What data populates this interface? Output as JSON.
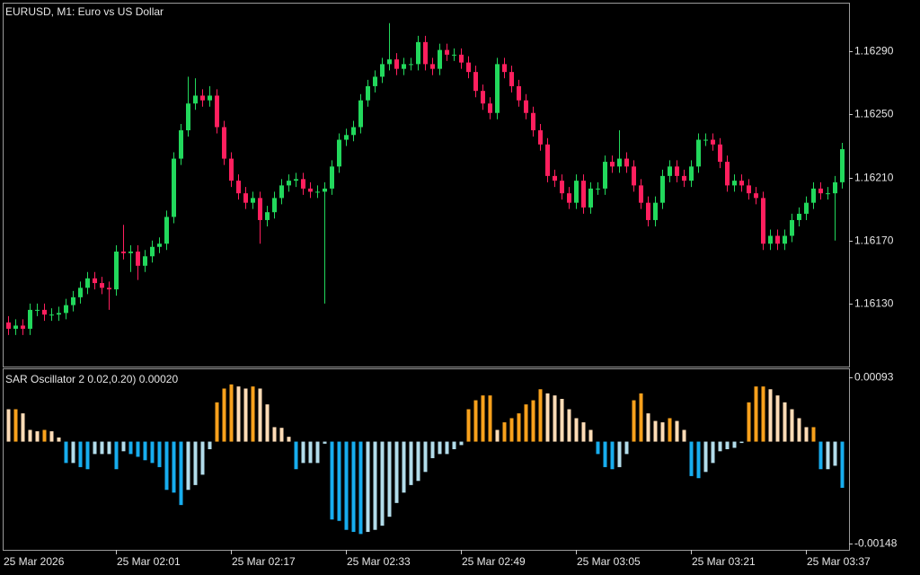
{
  "chart_data": [
    {
      "type": "candlestick",
      "title": "EURUSD, M1:  Euro vs US Dollar",
      "categories": [
        "25 Mar 2026",
        null,
        null,
        null,
        null,
        null,
        null,
        null,
        null,
        null,
        null,
        null,
        null,
        null,
        null,
        "25 Mar 02:01",
        null,
        null,
        null,
        null,
        null,
        null,
        null,
        null,
        null,
        null,
        null,
        null,
        null,
        null,
        null,
        "25 Mar 02:17",
        null,
        null,
        null,
        null,
        null,
        null,
        null,
        null,
        null,
        null,
        null,
        null,
        null,
        null,
        null,
        "25 Mar 02:33",
        null,
        null,
        null,
        null,
        null,
        null,
        null,
        null,
        null,
        null,
        null,
        null,
        null,
        null,
        null,
        "25 Mar 02:49",
        null,
        null,
        null,
        null,
        null,
        null,
        null,
        null,
        null,
        null,
        null,
        null,
        null,
        null,
        null,
        "25 Mar 03:05",
        null,
        null,
        null,
        null,
        null,
        null,
        null,
        null,
        null,
        null,
        null,
        null,
        null,
        null,
        null,
        "25 Mar 03:21",
        null,
        null,
        null,
        null,
        null,
        null,
        null,
        null,
        null,
        null,
        null,
        null,
        null,
        null,
        null,
        "25 Mar 03:37",
        null,
        null,
        null,
        null,
        null
      ],
      "open": [
        1.16118,
        1.16114,
        1.16116,
        1.16114,
        1.16126,
        1.16126,
        1.16123,
        1.16123,
        1.16124,
        1.16129,
        1.16134,
        1.1614,
        1.16146,
        1.16143,
        1.1614,
        1.16139,
        1.16163,
        1.16162,
        1.16163,
        1.16154,
        1.1616,
        1.16166,
        1.16168,
        1.16185,
        1.16222,
        1.1624,
        1.16257,
        1.16262,
        1.16259,
        1.16262,
        1.16242,
        1.16222,
        1.16208,
        1.162,
        1.16194,
        1.16197,
        1.16183,
        1.16188,
        1.16197,
        1.16205,
        1.16208,
        1.16209,
        1.16203,
        1.16201,
        1.16201,
        1.16203,
        1.16217,
        1.16234,
        1.16237,
        1.16242,
        1.16259,
        1.16268,
        1.16274,
        1.16282,
        1.16285,
        1.16279,
        1.16282,
        1.16282,
        1.16296,
        1.16282,
        1.16279,
        1.16291,
        1.16288,
        1.16288,
        1.16283,
        1.16277,
        1.16265,
        1.16257,
        1.16251,
        1.16282,
        1.16277,
        1.16268,
        1.16259,
        1.16251,
        1.1624,
        1.16231,
        1.16211,
        1.16208,
        1.162,
        1.16194,
        1.16208,
        1.16191,
        1.16203,
        1.16203,
        1.1622,
        1.16217,
        1.16222,
        1.16217,
        1.16205,
        1.16194,
        1.16183,
        1.16194,
        1.16211,
        1.16217,
        1.16211,
        1.16208,
        1.16217,
        1.16234,
        1.16234,
        1.16231,
        1.1622,
        1.16205,
        1.16208,
        1.16205,
        1.162,
        1.16197,
        1.16168,
        1.16173,
        1.16168,
        1.16173,
        1.16183,
        1.16187,
        1.16194,
        1.16203,
        1.162,
        1.162,
        1.16207
      ],
      "high": [
        1.16122,
        1.1612,
        1.1612,
        1.1613,
        1.1613,
        1.1613,
        1.16127,
        1.16128,
        1.16133,
        1.16138,
        1.16144,
        1.1615,
        1.1615,
        1.16147,
        1.16144,
        1.16167,
        1.1618,
        1.16167,
        1.16167,
        1.16164,
        1.1617,
        1.16172,
        1.16189,
        1.16226,
        1.16244,
        1.16274,
        1.16273,
        1.16266,
        1.16268,
        1.16266,
        1.16246,
        1.16226,
        1.16212,
        1.16204,
        1.16201,
        1.16201,
        1.16192,
        1.16201,
        1.16209,
        1.16212,
        1.16213,
        1.16213,
        1.16207,
        1.16205,
        1.16207,
        1.16221,
        1.16238,
        1.16241,
        1.16246,
        1.16263,
        1.16272,
        1.16278,
        1.16286,
        1.16308,
        1.16289,
        1.16286,
        1.16286,
        1.163,
        1.163,
        1.16286,
        1.16295,
        1.16295,
        1.16292,
        1.16292,
        1.16287,
        1.16281,
        1.16269,
        1.16261,
        1.16286,
        1.16286,
        1.16281,
        1.16272,
        1.16263,
        1.16255,
        1.16244,
        1.16235,
        1.16215,
        1.16212,
        1.16204,
        1.16212,
        1.16212,
        1.16207,
        1.16207,
        1.16224,
        1.16224,
        1.1624,
        1.16226,
        1.16221,
        1.16209,
        1.16198,
        1.16198,
        1.16215,
        1.16221,
        1.16221,
        1.16215,
        1.16221,
        1.16238,
        1.16238,
        1.16238,
        1.16235,
        1.16224,
        1.16212,
        1.16212,
        1.16209,
        1.16204,
        1.16201,
        1.16177,
        1.16177,
        1.16177,
        1.16187,
        1.16191,
        1.16198,
        1.16207,
        1.16207,
        1.16204,
        1.16211,
        1.16232
      ],
      "low": [
        1.1611,
        1.1611,
        1.1611,
        1.1611,
        1.16122,
        1.16119,
        1.16119,
        1.16119,
        1.1612,
        1.16125,
        1.1613,
        1.16136,
        1.16139,
        1.16136,
        1.16126,
        1.16135,
        1.16158,
        1.1615,
        1.16145,
        1.1615,
        1.16156,
        1.16162,
        1.16164,
        1.16181,
        1.16218,
        1.16236,
        1.16253,
        1.16255,
        1.16255,
        1.16238,
        1.16218,
        1.16204,
        1.16196,
        1.1619,
        1.1619,
        1.16168,
        1.16179,
        1.16184,
        1.16193,
        1.16201,
        1.16204,
        1.16199,
        1.16197,
        1.16197,
        1.1613,
        1.16199,
        1.16213,
        1.1623,
        1.16233,
        1.16238,
        1.16255,
        1.16264,
        1.1627,
        1.16278,
        1.16275,
        1.16275,
        1.16278,
        1.16278,
        1.16278,
        1.16275,
        1.16275,
        1.16284,
        1.16284,
        1.16279,
        1.16273,
        1.16261,
        1.16253,
        1.16247,
        1.16247,
        1.16273,
        1.16264,
        1.16255,
        1.16247,
        1.16236,
        1.16227,
        1.16207,
        1.16204,
        1.16196,
        1.1619,
        1.1619,
        1.16187,
        1.16187,
        1.16199,
        1.16199,
        1.16213,
        1.16213,
        1.16213,
        1.16201,
        1.1619,
        1.16179,
        1.16179,
        1.1619,
        1.16207,
        1.16207,
        1.16204,
        1.16204,
        1.16213,
        1.1623,
        1.16227,
        1.16216,
        1.16201,
        1.16201,
        1.16201,
        1.16196,
        1.16193,
        1.16164,
        1.16164,
        1.16164,
        1.16164,
        1.16169,
        1.16179,
        1.16183,
        1.1619,
        1.16196,
        1.16196,
        1.1617,
        1.16203
      ],
      "close": [
        1.16114,
        1.16116,
        1.16114,
        1.16126,
        1.16126,
        1.16123,
        1.16123,
        1.16124,
        1.16129,
        1.16134,
        1.1614,
        1.16146,
        1.16143,
        1.1614,
        1.16139,
        1.16163,
        1.16162,
        1.16163,
        1.16154,
        1.1616,
        1.16166,
        1.16168,
        1.16185,
        1.16222,
        1.1624,
        1.16257,
        1.16262,
        1.16259,
        1.16262,
        1.16242,
        1.16222,
        1.16208,
        1.162,
        1.16194,
        1.16197,
        1.16183,
        1.16188,
        1.16197,
        1.16205,
        1.16208,
        1.16209,
        1.16203,
        1.16201,
        1.16201,
        1.16203,
        1.16217,
        1.16234,
        1.16237,
        1.16242,
        1.16259,
        1.16268,
        1.16274,
        1.16282,
        1.16285,
        1.16279,
        1.16282,
        1.16282,
        1.16296,
        1.16282,
        1.16279,
        1.16291,
        1.16288,
        1.16288,
        1.16283,
        1.16277,
        1.16265,
        1.16257,
        1.16251,
        1.16282,
        1.16277,
        1.16268,
        1.16259,
        1.16251,
        1.1624,
        1.16231,
        1.16211,
        1.16208,
        1.162,
        1.16194,
        1.16208,
        1.16191,
        1.16203,
        1.16203,
        1.1622,
        1.16217,
        1.16222,
        1.16217,
        1.16205,
        1.16194,
        1.16183,
        1.16194,
        1.16211,
        1.16217,
        1.16211,
        1.16208,
        1.16217,
        1.16234,
        1.16234,
        1.16231,
        1.1622,
        1.16205,
        1.16208,
        1.16205,
        1.162,
        1.16197,
        1.16168,
        1.16173,
        1.16168,
        1.16173,
        1.16183,
        1.16187,
        1.16194,
        1.16203,
        1.162,
        1.162,
        1.16207,
        1.16228
      ],
      "colors": {
        "up": "#22d85c",
        "down": "#ff1f5e"
      },
      "ylim": [
        1.1609,
        1.16321
      ],
      "yticks": [
        {
          "value": 1.1629,
          "label": "1.16290"
        },
        {
          "value": 1.1625,
          "label": "1.16250"
        },
        {
          "value": 1.1621,
          "label": "1.16210"
        },
        {
          "value": 1.1617,
          "label": "1.16170"
        },
        {
          "value": 1.1613,
          "label": "1.16130"
        }
      ]
    },
    {
      "type": "bar",
      "title": "SAR Oscillator 2 0.02,0.20) 0.00020",
      "values": [
        0.00047,
        0.00047,
        0.00041,
        0.00017,
        0.00015,
        0.00017,
        0.00015,
        6e-05,
        -0.00031,
        -0.00031,
        -0.00037,
        -0.0004,
        -0.00018,
        -0.00018,
        -0.00018,
        -0.0004,
        -0.00014,
        -0.00018,
        -0.00022,
        -0.00027,
        -0.00031,
        -0.00037,
        -0.0007,
        -0.00074,
        -0.00092,
        -0.0007,
        -0.00063,
        -0.00048,
        -0.00011,
        0.00057,
        0.00077,
        0.00083,
        0.0008,
        0.00077,
        0.0008,
        0.00077,
        0.00054,
        0.00021,
        0.0002,
        7e-05,
        -0.0004,
        -0.00031,
        -0.00031,
        -0.00031,
        -3e-05,
        -0.00113,
        -0.00115,
        -0.00128,
        -0.00131,
        -0.00134,
        -0.00131,
        -0.00128,
        -0.00122,
        -0.00109,
        -0.00089,
        -0.00074,
        -0.00063,
        -0.00057,
        -0.00044,
        -0.00024,
        -0.00018,
        -0.00018,
        -0.00011,
        -5e-05,
        0.00047,
        0.0006,
        0.00067,
        0.00067,
        0.00017,
        0.00028,
        0.00034,
        0.00041,
        0.00054,
        0.0006,
        0.00076,
        0.0007,
        0.00067,
        0.00062,
        0.00047,
        0.00034,
        0.00028,
        0.00017,
        -0.00018,
        -0.00037,
        -0.0004,
        -0.00037,
        -0.00018,
        0.0006,
        0.0007,
        0.00041,
        0.0003,
        0.00028,
        0.00034,
        0.0003,
        0.00017,
        -0.0005,
        -0.00053,
        -0.00044,
        -0.00031,
        -0.00014,
        -0.00011,
        -9e-05,
        -2e-05,
        0.00057,
        0.0008,
        0.0008,
        0.00076,
        0.00067,
        0.00057,
        0.00047,
        0.00034,
        0.00021,
        0.00021,
        -0.0004,
        -0.0004,
        -0.00035,
        -0.00067
      ],
      "colors": {
        "rising_positive": "#f7a11c",
        "falling_positive": "#ffdcb6",
        "falling_negative": "#17adee",
        "rising_negative": "#b2dcea"
      },
      "ylim": [
        -0.00157,
        0.00105
      ],
      "yticks": [
        0.00093,
        -0.00148
      ]
    }
  ]
}
